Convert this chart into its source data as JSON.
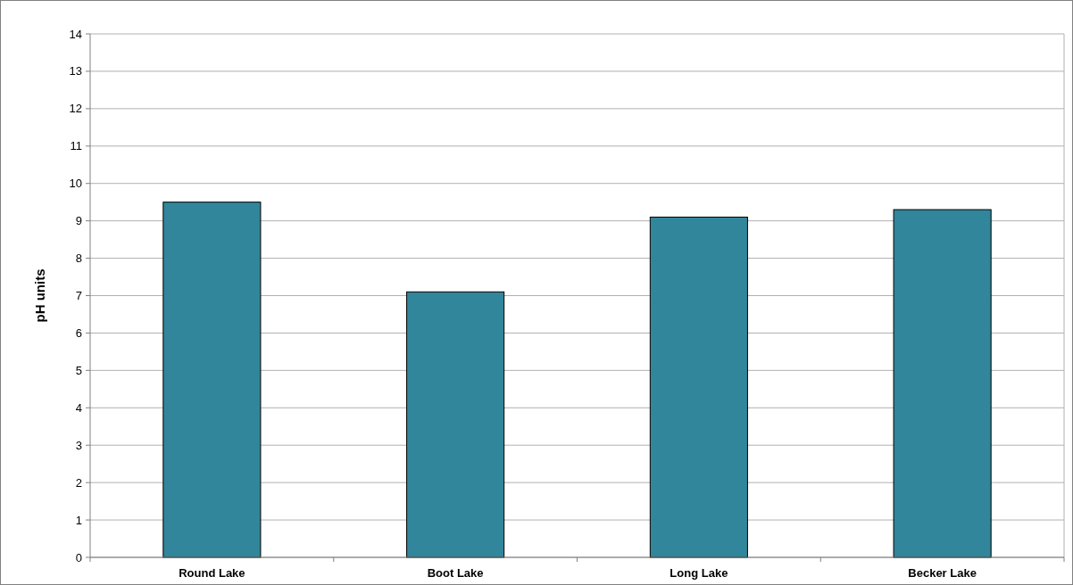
{
  "chart_data": {
    "type": "bar",
    "ylabel": "pH units",
    "categories": [
      "Round Lake",
      "Boot Lake",
      "Long Lake",
      "Becker Lake"
    ],
    "values": [
      9.5,
      7.1,
      9.1,
      9.3
    ],
    "color": "#31869b",
    "ylim": [
      0,
      14
    ],
    "yticks": [
      0,
      1,
      2,
      3,
      4,
      5,
      6,
      7,
      8,
      9,
      10,
      11,
      12,
      13,
      14
    ],
    "grid": "y"
  }
}
